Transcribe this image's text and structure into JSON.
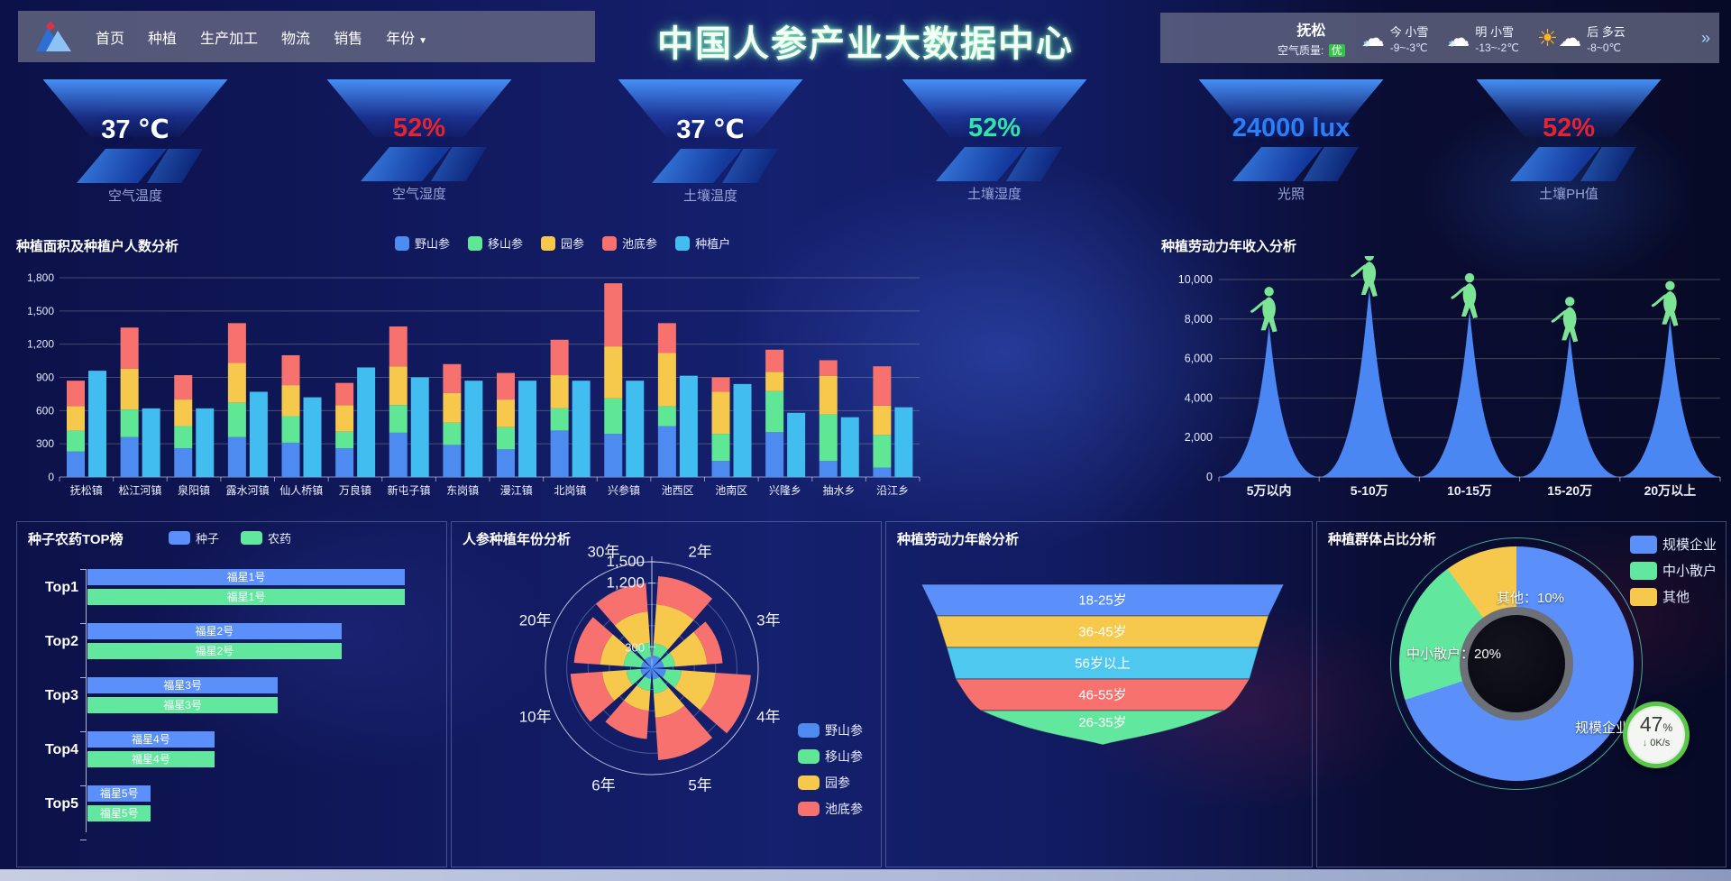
{
  "nav": {
    "items": [
      "首页",
      "种植",
      "生产加工",
      "物流",
      "销售",
      "年份"
    ],
    "dropdown_item": "年份",
    "dropdown_caret": "▼"
  },
  "header": {
    "title": "中国人参产业大数据中心"
  },
  "weather": {
    "city": "抚松",
    "air_quality_label": "空气质量:",
    "air_quality_value": "优",
    "forecasts": [
      {
        "day": "今",
        "condition": "小雪",
        "temp": "-9~-3℃",
        "icon": "cloud-snow"
      },
      {
        "day": "明",
        "condition": "小雪",
        "temp": "-13~-2℃",
        "icon": "cloud-snow"
      },
      {
        "day": "后",
        "condition": "多云",
        "temp": "-8~0℃",
        "icon": "sun-cloud"
      }
    ],
    "more_icon": "»"
  },
  "kpis": [
    {
      "label": "空气温度",
      "value": "37 ℃",
      "color": "#ffffff"
    },
    {
      "label": "空气湿度",
      "value": "52%",
      "color": "#e8232b"
    },
    {
      "label": "土壤温度",
      "value": "37 ℃",
      "color": "#ffffff"
    },
    {
      "label": "土壤湿度",
      "value": "52%",
      "color": "#31e5a2"
    },
    {
      "label": "光照",
      "value": "24000 lux",
      "color": "#2e7ef5"
    },
    {
      "label": "土壤PH值",
      "value": "52%",
      "color": "#e8232b"
    }
  ],
  "chart_data": [
    {
      "type": "bar",
      "stacked": true,
      "title": "种植面积及种植户人数分析",
      "categories": [
        "抚松镇",
        "松江河镇",
        "泉阳镇",
        "露水河镇",
        "仙人桥镇",
        "万良镇",
        "新屯子镇",
        "东岗镇",
        "漫江镇",
        "北岗镇",
        "兴参镇",
        "池西区",
        "池南区",
        "兴隆乡",
        "抽水乡",
        "沿江乡"
      ],
      "series": [
        {
          "name": "野山参",
          "color": "#4e8bf0",
          "stack": "ginseng",
          "values": [
            230,
            360,
            260,
            360,
            310,
            260,
            400,
            290,
            250,
            420,
            390,
            460,
            145,
            405,
            145,
            85
          ]
        },
        {
          "name": "移山参",
          "color": "#5fe796",
          "stack": "ginseng",
          "values": [
            190,
            250,
            200,
            310,
            240,
            150,
            250,
            200,
            200,
            200,
            320,
            180,
            245,
            370,
            420,
            295
          ]
        },
        {
          "name": "园参",
          "color": "#f6c94c",
          "stack": "ginseng",
          "values": [
            220,
            370,
            240,
            360,
            280,
            240,
            350,
            270,
            250,
            300,
            470,
            480,
            380,
            175,
            350,
            265
          ]
        },
        {
          "name": "池底参",
          "color": "#f7716e",
          "stack": "ginseng",
          "values": [
            230,
            370,
            220,
            360,
            270,
            200,
            360,
            260,
            240,
            320,
            570,
            270,
            130,
            200,
            140,
            355
          ]
        },
        {
          "name": "种植户",
          "color": "#41bdf0",
          "stack": null,
          "values": [
            960,
            620,
            620,
            770,
            720,
            990,
            900,
            870,
            870,
            870,
            870,
            915,
            840,
            580,
            540,
            630
          ]
        }
      ],
      "ylim": [
        0,
        1800
      ],
      "yticks": [
        "0",
        "300",
        "600",
        "900",
        "1,200",
        "1,500",
        "1,800"
      ],
      "grid": true,
      "legend_position": "top"
    },
    {
      "type": "area",
      "title": "种植劳动力年收入分析",
      "categories": [
        "5万以内",
        "5-10万",
        "10-15万",
        "15-20万",
        "20万以上"
      ],
      "values": [
        7700,
        9500,
        8400,
        7200,
        8000
      ],
      "ylim": [
        0,
        10000
      ],
      "yticks": [
        "0",
        "2,000",
        "4,000",
        "6,000",
        "8,000",
        "10,000"
      ],
      "peak_color": "#4b87f2",
      "figure_color": "#7ce495",
      "grid": true
    },
    {
      "type": "bar",
      "orientation": "horizontal",
      "title": "种子农药TOP榜",
      "categories": [
        "Top1",
        "Top2",
        "Top3",
        "Top4",
        "Top5"
      ],
      "series": [
        {
          "name": "种子",
          "color": "#5b8ff9",
          "values": [
            100,
            80,
            60,
            40,
            20
          ]
        },
        {
          "name": "农药",
          "color": "#62e79e",
          "values": [
            100,
            80,
            60,
            40,
            20
          ]
        }
      ],
      "bar_labels": [
        "福星1号",
        "福星2号",
        "福星3号",
        "福星4号",
        "福星5号"
      ],
      "legend_position": "top"
    },
    {
      "type": "bar",
      "polar": true,
      "title": "人参种植年份分析",
      "categories": [
        "2年",
        "3年",
        "4年",
        "5年",
        "6年",
        "10年",
        "20年",
        "30年"
      ],
      "series": [
        {
          "name": "野山参",
          "color": "#4e8bf0",
          "values": [
            180,
            170,
            200,
            160,
            150,
            160,
            150,
            160
          ]
        },
        {
          "name": "移山参",
          "color": "#5fe796",
          "values": [
            170,
            160,
            220,
            200,
            170,
            200,
            250,
            200
          ]
        },
        {
          "name": "园参",
          "color": "#f6c94c",
          "values": [
            550,
            450,
            480,
            340,
            280,
            340,
            330,
            440
          ]
        },
        {
          "name": "池底参",
          "color": "#f7716e",
          "values": [
            400,
            220,
            500,
            600,
            400,
            450,
            370,
            400
          ]
        }
      ],
      "rmax": 1500,
      "radial_ticks": [
        {
          "label": "300",
          "value": 300
        },
        {
          "label": "1,200",
          "value": 1200
        },
        {
          "label": "1,500",
          "value": 1500
        }
      ],
      "legend_position": "bottom-right"
    },
    {
      "type": "funnel",
      "title": "种植劳动力年龄分析",
      "stages": [
        {
          "label": "18-25岁",
          "color": "#5b8ff9"
        },
        {
          "label": "36-45岁",
          "color": "#f6c94c"
        },
        {
          "label": "56岁以上",
          "color": "#4fc8ef"
        },
        {
          "label": "46-55岁",
          "color": "#f7716e"
        },
        {
          "label": "26-35岁",
          "color": "#62e79e"
        }
      ]
    },
    {
      "type": "pie",
      "title": "种植群体占比分析",
      "slices": [
        {
          "label": "规模企业",
          "value": 70,
          "color": "#5b8ff9"
        },
        {
          "label": "中小散户",
          "value": 20,
          "color": "#62e79e"
        },
        {
          "label": "其他",
          "value": 10,
          "color": "#f6c94c"
        }
      ],
      "callouts": [
        "其他：10%",
        "中小散户：20%",
        "规模企业：70%"
      ],
      "legend_position": "top-right"
    }
  ],
  "overlay_badge": {
    "percent": "47",
    "percent_sign": "%",
    "arrow": "↓",
    "speed": "0K/s"
  }
}
